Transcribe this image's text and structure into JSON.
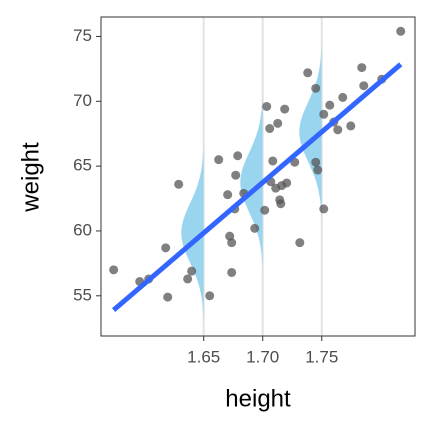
{
  "chart_data": {
    "type": "scatter",
    "x_label": "height",
    "y_label": "weight",
    "x": [
      1.5737,
      1.5958,
      1.6034,
      1.6178,
      1.6195,
      1.6288,
      1.6364,
      1.6398,
      1.6551,
      1.6627,
      1.6703,
      1.672,
      1.6737,
      1.6737,
      1.6771,
      1.6788,
      1.6763,
      1.6839,
      1.6932,
      1.7017,
      1.7034,
      1.7059,
      1.7068,
      1.7085,
      1.711,
      1.7127,
      1.7144,
      1.7153,
      1.7161,
      1.7186,
      1.7203,
      1.7271,
      1.7314,
      1.7381,
      1.7449,
      1.7449,
      1.7466,
      1.7517,
      1.7517,
      1.7568,
      1.7602,
      1.7636,
      1.7678,
      1.7746,
      1.7839,
      1.7856,
      1.8008,
      1.8169
    ],
    "values": [
      57.0,
      56.1,
      56.3,
      58.7,
      54.9,
      63.6,
      56.3,
      56.9,
      55.0,
      65.5,
      62.8,
      59.6,
      59.1,
      56.8,
      64.3,
      65.8,
      61.7,
      62.9,
      60.2,
      61.6,
      69.6,
      67.9,
      63.8,
      65.4,
      63.3,
      68.3,
      62.4,
      62.1,
      63.5,
      69.4,
      63.7,
      65.3,
      59.1,
      72.2,
      71.0,
      65.3,
      64.7,
      61.7,
      69.0,
      69.7,
      68.4,
      67.8,
      70.3,
      68.1,
      72.6,
      71.2,
      71.7,
      75.4
    ],
    "color": "#555555",
    "fit": {
      "x": [
        1.5737,
        1.8169
      ],
      "y": [
        53.9,
        72.85
      ],
      "color": "#3366ff"
    },
    "distributions": {
      "x": [
        1.65,
        1.7,
        1.75
      ],
      "sd": 2.3,
      "peak": 0.019,
      "color": "#87ceeb"
    },
    "xlim": [
      1.563,
      1.829
    ],
    "ylim": [
      51.9,
      76.5
    ],
    "xticks": [
      1.65,
      {
        "value": 1.7,
        "label": "1.70"
      },
      1.75
    ],
    "yticks": [
      55,
      60,
      65,
      70,
      75
    ],
    "grid": "x"
  }
}
